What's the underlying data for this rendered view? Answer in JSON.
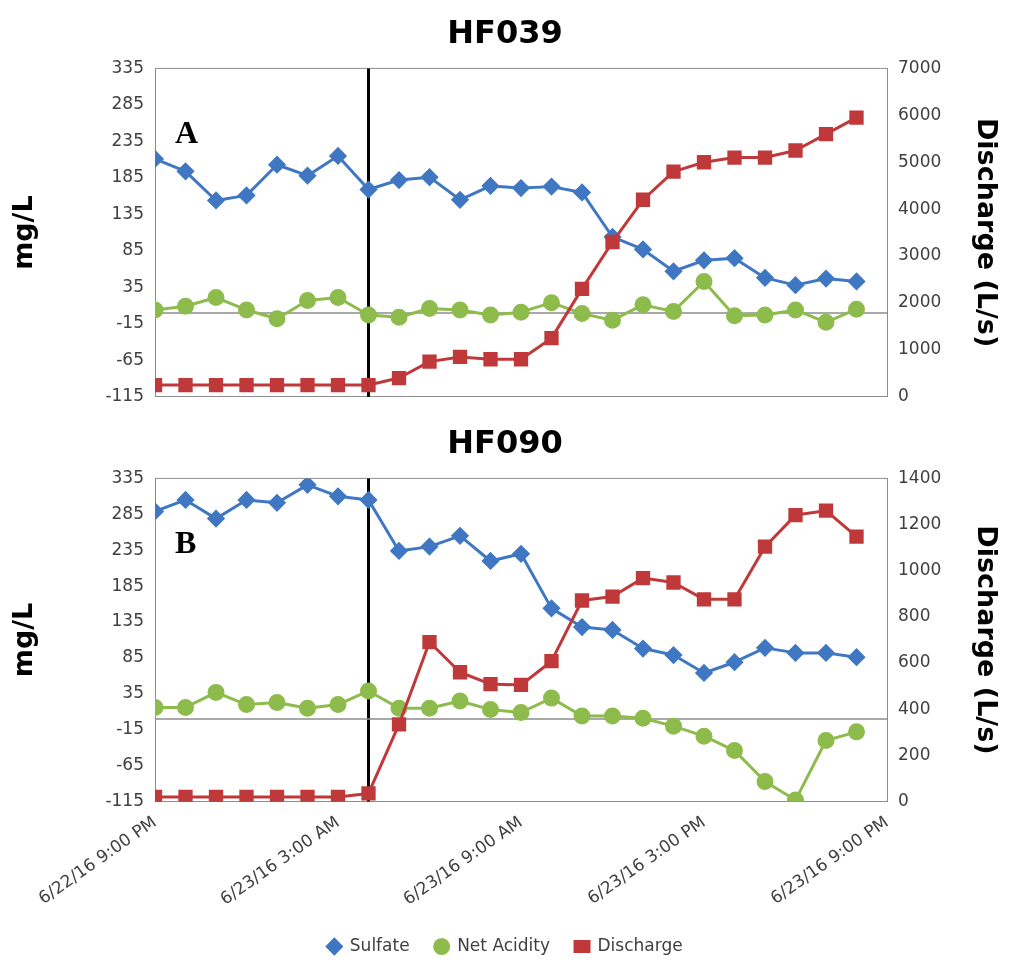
{
  "chart_data": [
    {
      "type": "line",
      "title": "HF039",
      "ylabel": "mg/L",
      "y2label": "Discharge (L/s)",
      "annotations": [
        "A"
      ],
      "x": [
        "--06-22T21:00",
        "--06-22T22:00",
        "--06-22T23:00",
        "--06-23T00:00",
        "--06-23T01:00",
        "--06-23T02:00",
        "--06-23T03:00",
        "--06-23T04:00",
        "--06-23T05:00",
        "--06-23T06:00",
        "--06-23T07:00",
        "--06-23T08:00",
        "--06-23T09:00",
        "--06-23T10:00",
        "--06-23T11:00",
        "--06-23T12:00",
        "--06-23T13:00",
        "--06-23T14:00",
        "--06-23T15:00",
        "--06-23T16:00",
        "--06-23T17:00",
        "--06-23T18:00",
        "--06-23T19:00",
        "--06-23T20:00"
      ],
      "series": [
        {
          "color": "#3f77c2",
          "marker": "diamond",
          "values": [
            211,
            194,
            154,
            161,
            203,
            188,
            215,
            169,
            182,
            186,
            155,
            174,
            171,
            173,
            165,
            104,
            87,
            57,
            72,
            75,
            48,
            38,
            47,
            43
          ]
        },
        {
          "color": "#8dbb4c",
          "marker": "circle",
          "values": [
            4,
            9,
            21,
            4,
            -8,
            17,
            21,
            -3,
            -6,
            6,
            4,
            -3,
            1,
            14,
            -1,
            -10,
            11,
            2,
            43,
            -4,
            -3,
            4,
            -13,
            5
          ]
        },
        {
          "color": "#c0393a",
          "marker": "square",
          "axis": "y2",
          "values": [
            250,
            250,
            250,
            250,
            250,
            250,
            250,
            250,
            400,
            750,
            850,
            800,
            800,
            1250,
            2300,
            3300,
            4200,
            4800,
            5000,
            5100,
            5100,
            5250,
            5600,
            5950
          ]
        }
      ],
      "xlim": [
        "--06-22T21:00",
        "--06-23T21:00"
      ],
      "xticks": [
        {
          "value": "--06-22T21:00",
          "label": null
        },
        {
          "value": "--06-23T03:00",
          "label": null
        },
        {
          "value": "--06-23T09:00",
          "label": null
        },
        {
          "value": "--06-23T15:00",
          "label": null
        },
        {
          "value": "--06-23T21:00",
          "label": null
        }
      ],
      "ylim": [
        -115,
        335
      ],
      "yticks": [
        -115,
        -65,
        -15,
        35,
        85,
        135,
        185,
        235,
        285,
        335
      ],
      "y2lim": [
        0,
        7000
      ],
      "y2ticks": [
        0,
        1000,
        2000,
        3000,
        4000,
        5000,
        6000,
        7000
      ],
      "ref_lines": [
        {
          "axis": "x",
          "value": "--06-23T04:00",
          "color": "#000000"
        },
        {
          "axis": "y",
          "value": 0,
          "color": "#8c8c8c"
        }
      ],
      "grid": false,
      "legend": false,
      "tick_labels": "y"
    },
    {
      "type": "line",
      "title": "HF090",
      "ylabel": "mg/L",
      "y2label": "Discharge (L/s)",
      "annotations": [
        "B"
      ],
      "x": [
        "--06-22T21:00",
        "--06-22T22:00",
        "--06-22T23:00",
        "--06-23T00:00",
        "--06-23T01:00",
        "--06-23T02:00",
        "--06-23T03:00",
        "--06-23T04:00",
        "--06-23T05:00",
        "--06-23T06:00",
        "--06-23T07:00",
        "--06-23T08:00",
        "--06-23T09:00",
        "--06-23T10:00",
        "--06-23T11:00",
        "--06-23T12:00",
        "--06-23T13:00",
        "--06-23T14:00",
        "--06-23T15:00",
        "--06-23T16:00",
        "--06-23T17:00",
        "--06-23T18:00",
        "--06-23T19:00",
        "--06-23T20:00"
      ],
      "series": [
        {
          "name": "Sulfate",
          "color": "#3f77c2",
          "marker": "diamond",
          "values": [
            289,
            305,
            279,
            305,
            301,
            326,
            310,
            305,
            234,
            240,
            255,
            220,
            230,
            154,
            128,
            124,
            98,
            89,
            64,
            79,
            99,
            92,
            92,
            86
          ]
        },
        {
          "name": "Net Acidity",
          "color": "#8dbb4c",
          "marker": "circle",
          "values": [
            16,
            16,
            37,
            20,
            23,
            15,
            20,
            39,
            15,
            15,
            25,
            13,
            9,
            29,
            4,
            4,
            1,
            -10,
            -24,
            -44,
            -87,
            -113,
            -30,
            -18
          ]
        },
        {
          "name": "Discharge",
          "color": "#c0393a",
          "marker": "square",
          "axis": "y2",
          "values": [
            20,
            20,
            20,
            20,
            20,
            20,
            20,
            35,
            334,
            691,
            560,
            509,
            505,
            608,
            871,
            888,
            968,
            949,
            876,
            876,
            1104,
            1241,
            1260,
            1148
          ]
        }
      ],
      "xlim": [
        "--06-22T21:00",
        "--06-23T21:00"
      ],
      "xticks": [
        {
          "value": "--06-22T21:00",
          "label": "6/22/16 9:00 PM"
        },
        {
          "value": "--06-23T03:00",
          "label": "6/23/16 3:00 AM"
        },
        {
          "value": "--06-23T09:00",
          "label": "6/23/16 9:00 AM"
        },
        {
          "value": "--06-23T15:00",
          "label": "6/23/16 3:00 PM"
        },
        {
          "value": "--06-23T21:00",
          "label": "6/23/16 9:00 PM"
        }
      ],
      "ylim": [
        -115,
        335
      ],
      "yticks": [
        -115,
        -65,
        -15,
        35,
        85,
        135,
        185,
        235,
        285,
        335
      ],
      "y2lim": [
        0,
        1400
      ],
      "y2ticks": [
        0,
        200,
        400,
        600,
        800,
        1000,
        1200,
        1400
      ],
      "ref_lines": [
        {
          "axis": "x",
          "value": "--06-23T04:00",
          "color": "#000000"
        },
        {
          "axis": "y",
          "value": 0,
          "color": "#8c8c8c"
        }
      ],
      "grid": false,
      "legend": "bottom"
    }
  ]
}
